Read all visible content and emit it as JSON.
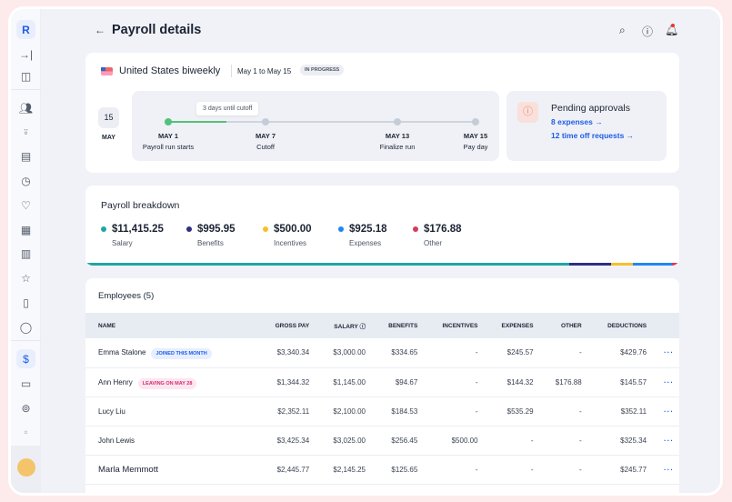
{
  "header": {
    "title": "Payroll details"
  },
  "run": {
    "flag": "us-flag-icon",
    "name": "United States biweekly",
    "dates": "May 1 to May 15",
    "status": "IN PROGRESS",
    "calendar_day": "15",
    "calendar_month": "MAY",
    "tooltip": "3 days until cutoff",
    "progress_to_cutoff": 0.6,
    "milestones": [
      {
        "date": "MAY 1",
        "label": "Payroll run starts",
        "done": true
      },
      {
        "date": "MAY 7",
        "label": "Cutoff",
        "done": false
      },
      {
        "date": "MAY 13",
        "label": "Finalize run",
        "done": false
      },
      {
        "date": "MAY 15",
        "label": "Pay day",
        "done": false
      }
    ]
  },
  "approvals": {
    "title": "Pending approvals",
    "links": [
      "8 expenses →",
      "12 time off requests →"
    ]
  },
  "breakdown": {
    "title": "Payroll breakdown",
    "items": [
      {
        "value": "$11,415.25",
        "label": "Salary",
        "color": "#1fa5a5",
        "amount": 11415.25
      },
      {
        "value": "$995.95",
        "label": "Benefits",
        "color": "#2f2e86",
        "amount": 995.95
      },
      {
        "value": "$500.00",
        "label": "Incentives",
        "color": "#f6c02c",
        "amount": 500
      },
      {
        "value": "$925.18",
        "label": "Expenses",
        "color": "#1f86f0",
        "amount": 925.18
      },
      {
        "value": "$176.88",
        "label": "Other",
        "color": "#d83a5a",
        "amount": 176.88
      }
    ]
  },
  "employees": {
    "title": "Employees (5)",
    "columns": [
      "NAME",
      "GROSS PAY",
      "SALARY",
      "BENEFITS",
      "INCENTIVES",
      "EXPENSES",
      "OTHER",
      "DEDUCTIONS"
    ],
    "rows": [
      {
        "name": "Emma Stalone",
        "badge": "JOINED THIS MONTH",
        "badge_type": "info",
        "cells": [
          "$3,340.34",
          "$3,000.00",
          "$334.65",
          "-",
          "$245.57",
          "-",
          "$429.76"
        ]
      },
      {
        "name": "Ann Henry",
        "badge": "LEAVING ON MAY 28",
        "badge_type": "warn",
        "cells": [
          "$1,344.32",
          "$1,145.00",
          "$94.67",
          "-",
          "$144.32",
          "$176.88",
          "$145.57"
        ]
      },
      {
        "name": "Lucy Liu",
        "badge": "",
        "cells": [
          "$2,352.11",
          "$2,100.00",
          "$184.53",
          "-",
          "$535.29",
          "-",
          "$352.11"
        ]
      },
      {
        "name": "John Lewis",
        "badge": "",
        "cells": [
          "$3,425.34",
          "$3,025.00",
          "$256.45",
          "$500.00",
          "-",
          "-",
          "$325.34"
        ]
      },
      {
        "name": "Marla Memmott",
        "badge": "",
        "cells": [
          "$2,445.77",
          "$2,145.25",
          "$125.65",
          "-",
          "-",
          "-",
          "$245.77"
        ]
      }
    ]
  },
  "more_label": "···",
  "sidebar": {
    "logo": "R",
    "icons": [
      "collapse-icon",
      "panel-icon",
      "people-icon",
      "add-person-icon",
      "list-icon",
      "clock-icon",
      "heart-icon",
      "document-icon",
      "calculator-icon",
      "star-icon",
      "device-icon",
      "chat-icon",
      "dollar-icon",
      "card-icon",
      "money-icon",
      "receipt-icon"
    ]
  }
}
